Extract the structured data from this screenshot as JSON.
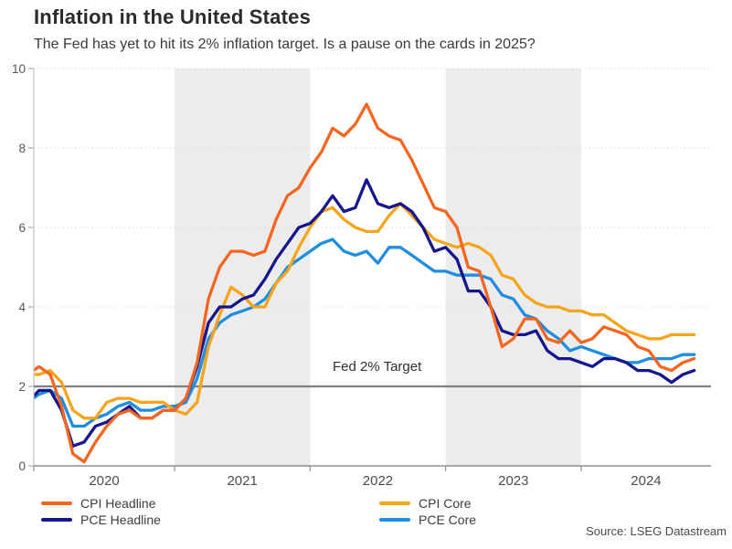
{
  "header": {
    "title": "Inflation in the United States",
    "subtitle": "The Fed has yet to hit its 2% inflation target. Is a pause on the cards in 2025?"
  },
  "source": "Source: LSEG Datastream",
  "colors": {
    "cpi_headline": "#F4661F",
    "cpi_core": "#F6A41C",
    "pce_headline": "#15168B",
    "pce_core": "#1F8DE0",
    "target_line": "#7F7F7F",
    "year_band": "#ECECEC",
    "gridline": "#D9D9D9",
    "axis": "#8F8F8F",
    "axis_left": "#D0D0D0",
    "tick_label": "#4D4D4D"
  },
  "chart_data": {
    "type": "line",
    "title": "Inflation in the United States",
    "xlabel": "",
    "ylabel": "",
    "x_start": "2019-12",
    "x_end": "2024-11",
    "frequency": "monthly",
    "ylim": [
      0,
      10
    ],
    "y_ticks": [
      0,
      2,
      4,
      6,
      8,
      10
    ],
    "x_tick_labels": [
      "2020",
      "2021",
      "2022",
      "2023",
      "2024"
    ],
    "shaded_years": [
      "2021",
      "2023"
    ],
    "grid": "dotted horizontal gridlines",
    "legend_position": "bottom",
    "target": {
      "label": "Fed 2% Target",
      "value": 2
    },
    "series": [
      {
        "name": "CPI Headline",
        "color": "#F4661F",
        "values": [
          2.3,
          2.5,
          2.3,
          1.5,
          0.3,
          0.1,
          0.6,
          1.0,
          1.3,
          1.4,
          1.2,
          1.2,
          1.4,
          1.4,
          1.7,
          2.6,
          4.2,
          5.0,
          5.4,
          5.4,
          5.3,
          5.4,
          6.2,
          6.8,
          7.0,
          7.5,
          7.9,
          8.5,
          8.3,
          8.6,
          9.1,
          8.5,
          8.3,
          8.2,
          7.7,
          7.1,
          6.5,
          6.4,
          6.0,
          5.0,
          4.9,
          4.0,
          3.0,
          3.2,
          3.7,
          3.7,
          3.2,
          3.1,
          3.4,
          3.1,
          3.2,
          3.5,
          3.4,
          3.3,
          3.0,
          2.9,
          2.5,
          2.4,
          2.6,
          2.7
        ]
      },
      {
        "name": "CPI Core",
        "color": "#F6A41C",
        "values": [
          2.3,
          2.3,
          2.4,
          2.1,
          1.4,
          1.2,
          1.2,
          1.6,
          1.7,
          1.7,
          1.6,
          1.6,
          1.6,
          1.4,
          1.3,
          1.6,
          3.0,
          3.8,
          4.5,
          4.3,
          4.0,
          4.0,
          4.6,
          4.9,
          5.5,
          6.0,
          6.4,
          6.5,
          6.2,
          6.0,
          5.9,
          5.9,
          6.3,
          6.6,
          6.3,
          6.0,
          5.7,
          5.6,
          5.5,
          5.6,
          5.5,
          5.3,
          4.8,
          4.7,
          4.3,
          4.1,
          4.0,
          4.0,
          3.9,
          3.9,
          3.8,
          3.8,
          3.6,
          3.4,
          3.3,
          3.2,
          3.2,
          3.3,
          3.3,
          3.3
        ]
      },
      {
        "name": "PCE Headline",
        "color": "#15168B",
        "values": [
          1.6,
          1.9,
          1.9,
          1.4,
          0.5,
          0.6,
          1.0,
          1.1,
          1.3,
          1.5,
          1.2,
          1.2,
          1.4,
          1.4,
          1.7,
          2.5,
          3.6,
          4.0,
          4.0,
          4.2,
          4.3,
          4.7,
          5.2,
          5.6,
          6.0,
          6.1,
          6.4,
          6.8,
          6.4,
          6.5,
          7.2,
          6.6,
          6.5,
          6.6,
          6.4,
          6.0,
          5.4,
          5.5,
          5.2,
          4.4,
          4.4,
          4.0,
          3.4,
          3.3,
          3.3,
          3.4,
          2.9,
          2.7,
          2.7,
          2.6,
          2.5,
          2.7,
          2.7,
          2.6,
          2.4,
          2.4,
          2.3,
          2.1,
          2.3,
          2.4
        ]
      },
      {
        "name": "PCE Core",
        "color": "#1F8DE0",
        "values": [
          1.6,
          1.8,
          1.9,
          1.7,
          1.0,
          1.0,
          1.2,
          1.3,
          1.5,
          1.6,
          1.4,
          1.4,
          1.5,
          1.5,
          1.6,
          2.2,
          3.2,
          3.6,
          3.8,
          3.9,
          4.0,
          4.2,
          4.6,
          5.0,
          5.2,
          5.4,
          5.6,
          5.7,
          5.4,
          5.3,
          5.4,
          5.1,
          5.5,
          5.5,
          5.3,
          5.1,
          4.9,
          4.9,
          4.8,
          4.8,
          4.8,
          4.7,
          4.3,
          4.2,
          3.8,
          3.7,
          3.4,
          3.2,
          2.9,
          3.0,
          2.9,
          2.8,
          2.7,
          2.6,
          2.6,
          2.7,
          2.7,
          2.7,
          2.8,
          2.8
        ]
      }
    ]
  },
  "legend": {
    "items": [
      {
        "label": "CPI Headline",
        "color": "#F4661F"
      },
      {
        "label": "PCE Headline",
        "color": "#15168B"
      },
      {
        "label": "CPI Core",
        "color": "#F6A41C"
      },
      {
        "label": "PCE Core",
        "color": "#1F8DE0"
      }
    ]
  }
}
